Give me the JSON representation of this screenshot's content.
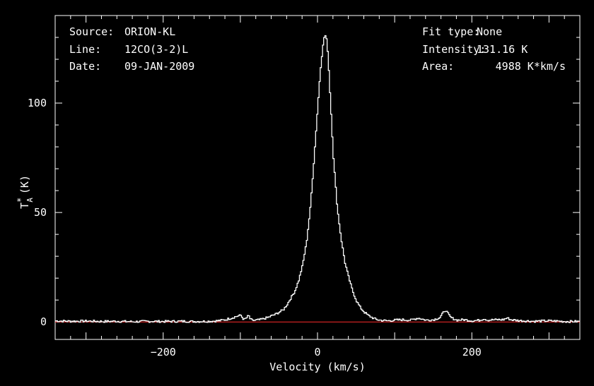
{
  "window": {
    "background": "#000000"
  },
  "info_left": [
    {
      "label": "Source:",
      "value": "ORION-KL"
    },
    {
      "label": "Line:",
      "value": "12CO(3-2)L"
    },
    {
      "label": "Date:",
      "value": "09-JAN-2009"
    }
  ],
  "info_right": [
    {
      "label": "Fit type:",
      "value": "None"
    },
    {
      "label": "Intensity:",
      "value": "131.16 K"
    },
    {
      "label": "Area:",
      "value": "4988 K*km/s"
    }
  ],
  "chart_data": {
    "type": "line",
    "xlabel": "Velocity (km/s)",
    "ylabel_main": "T",
    "ylabel_sup": "*",
    "ylabel_sub": "A",
    "ylabel_unit": "(K)",
    "xlim": [
      -340,
      340
    ],
    "ylim": [
      -8,
      140
    ],
    "xticks": [
      -200,
      0,
      200
    ],
    "xtick_labels": [
      "−200",
      "0",
      "200"
    ],
    "yticks": [
      0,
      50,
      100
    ],
    "ytick_labels": [
      "0",
      "50",
      "100"
    ],
    "series": [
      {
        "color": "#ffffff",
        "x": [
          -340,
          -320,
          -300,
          -280,
          -260,
          -240,
          -220,
          -200,
          -180,
          -160,
          -140,
          -130,
          -120,
          -110,
          -105,
          -100,
          -96,
          -92,
          -90,
          -88,
          -85,
          -80,
          -75,
          -70,
          -65,
          -60,
          -55,
          -50,
          -45,
          -40,
          -35,
          -30,
          -25,
          -20,
          -15,
          -10,
          -5,
          0,
          3,
          6,
          8,
          10,
          12,
          14,
          17,
          20,
          25,
          30,
          35,
          40,
          45,
          50,
          55,
          60,
          65,
          70,
          75,
          80,
          90,
          100,
          110,
          120,
          130,
          140,
          150,
          158,
          162,
          165,
          168,
          172,
          180,
          190,
          200,
          210,
          215,
          220,
          230,
          240,
          245,
          250,
          260,
          280,
          300,
          320,
          340
        ],
        "y": [
          0.5,
          0.3,
          0.4,
          0.2,
          0.3,
          0.1,
          0.3,
          0.2,
          0.3,
          0.2,
          0.3,
          0.5,
          1.0,
          2.0,
          2.6,
          3.0,
          1.0,
          2.0,
          3.0,
          1.5,
          0.6,
          0.8,
          1.0,
          1.5,
          2.0,
          2.8,
          3.5,
          4.5,
          5.5,
          8.0,
          11,
          14,
          19,
          26,
          36,
          52,
          75,
          100,
          115,
          125,
          130,
          131,
          127,
          115,
          95,
          75,
          52,
          38,
          27,
          20,
          14,
          9.5,
          6.5,
          4.5,
          3.0,
          2.0,
          1.2,
          0.8,
          0.5,
          0.8,
          1.0,
          0.8,
          1.8,
          0.8,
          1.0,
          2.0,
          4.0,
          5.5,
          4.0,
          2.0,
          0.8,
          1.0,
          0.5,
          0.8,
          1.5,
          0.8,
          1.0,
          1.0,
          1.8,
          1.0,
          0.6,
          0.3,
          0.5,
          0.2,
          0.2
        ]
      }
    ],
    "baseline": {
      "y": 0,
      "color": "#ff2a2a"
    }
  }
}
